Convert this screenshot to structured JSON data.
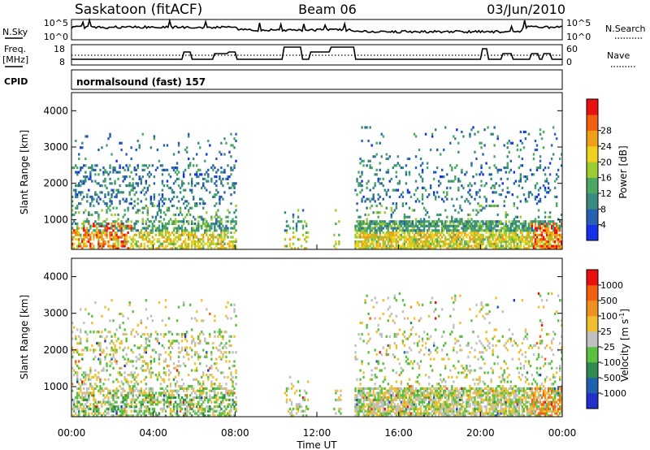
{
  "header": {
    "station": "Saskatoon (fitACF)",
    "beam": "Beam 06",
    "date": "03/Jun/2010"
  },
  "status_panels": {
    "nsky": {
      "left_label": "N.Sky",
      "left_ticks": [
        "10^5",
        "10^0"
      ],
      "right_ticks": [
        "10^5",
        "10^0"
      ],
      "right_label": "N.Search"
    },
    "freq": {
      "left_label_1": "Freq.",
      "left_label_2": "[MHz]",
      "left_ticks": [
        "18",
        "8"
      ],
      "right_ticks": [
        "60",
        "0"
      ],
      "right_label": "Nave"
    },
    "cpid": {
      "label": "CPID",
      "text": "normalsound (fast)  157"
    }
  },
  "chart_data": [
    {
      "type": "heatmap",
      "name": "power",
      "ylabel": "Slant Range [km]",
      "xlabel": "Time UT",
      "ylim": [
        180,
        4500
      ],
      "yticks": [
        "1000",
        "2000",
        "3000",
        "4000"
      ],
      "xticks": [
        "00:00",
        "04:00",
        "08:00",
        "12:00",
        "16:00",
        "20:00",
        "00:00"
      ],
      "colorbar": {
        "label": "Power [dB]",
        "ticks": [
          "4",
          "8",
          "12",
          "16",
          "20",
          "24",
          "28"
        ],
        "colors": [
          "#1430e8",
          "#2660b0",
          "#3a8a80",
          "#4aa860",
          "#9ccc30",
          "#f0d020",
          "#f0a018",
          "#f06010",
          "#e81010"
        ]
      }
    },
    {
      "type": "heatmap",
      "name": "velocity",
      "ylabel": "Slant Range [km]",
      "xlabel": "Time UT",
      "ylim": [
        180,
        4500
      ],
      "yticks": [
        "1000",
        "2000",
        "3000",
        "4000"
      ],
      "xticks": [
        "00:00",
        "04:00",
        "08:00",
        "12:00",
        "16:00",
        "20:00",
        "00:00"
      ],
      "colorbar": {
        "label": "Velocity [m s",
        "label_sup": "-1",
        "label_end": "]",
        "ticks": [
          "1000",
          "500",
          "100",
          "25",
          "-25",
          "-100",
          "-500",
          "-1000"
        ],
        "colors": [
          "#2030c8",
          "#2060b0",
          "#2e8a50",
          "#5ac040",
          "#c0c0c0",
          "#f0c030",
          "#f09020",
          "#f06010",
          "#e81010"
        ]
      }
    }
  ]
}
